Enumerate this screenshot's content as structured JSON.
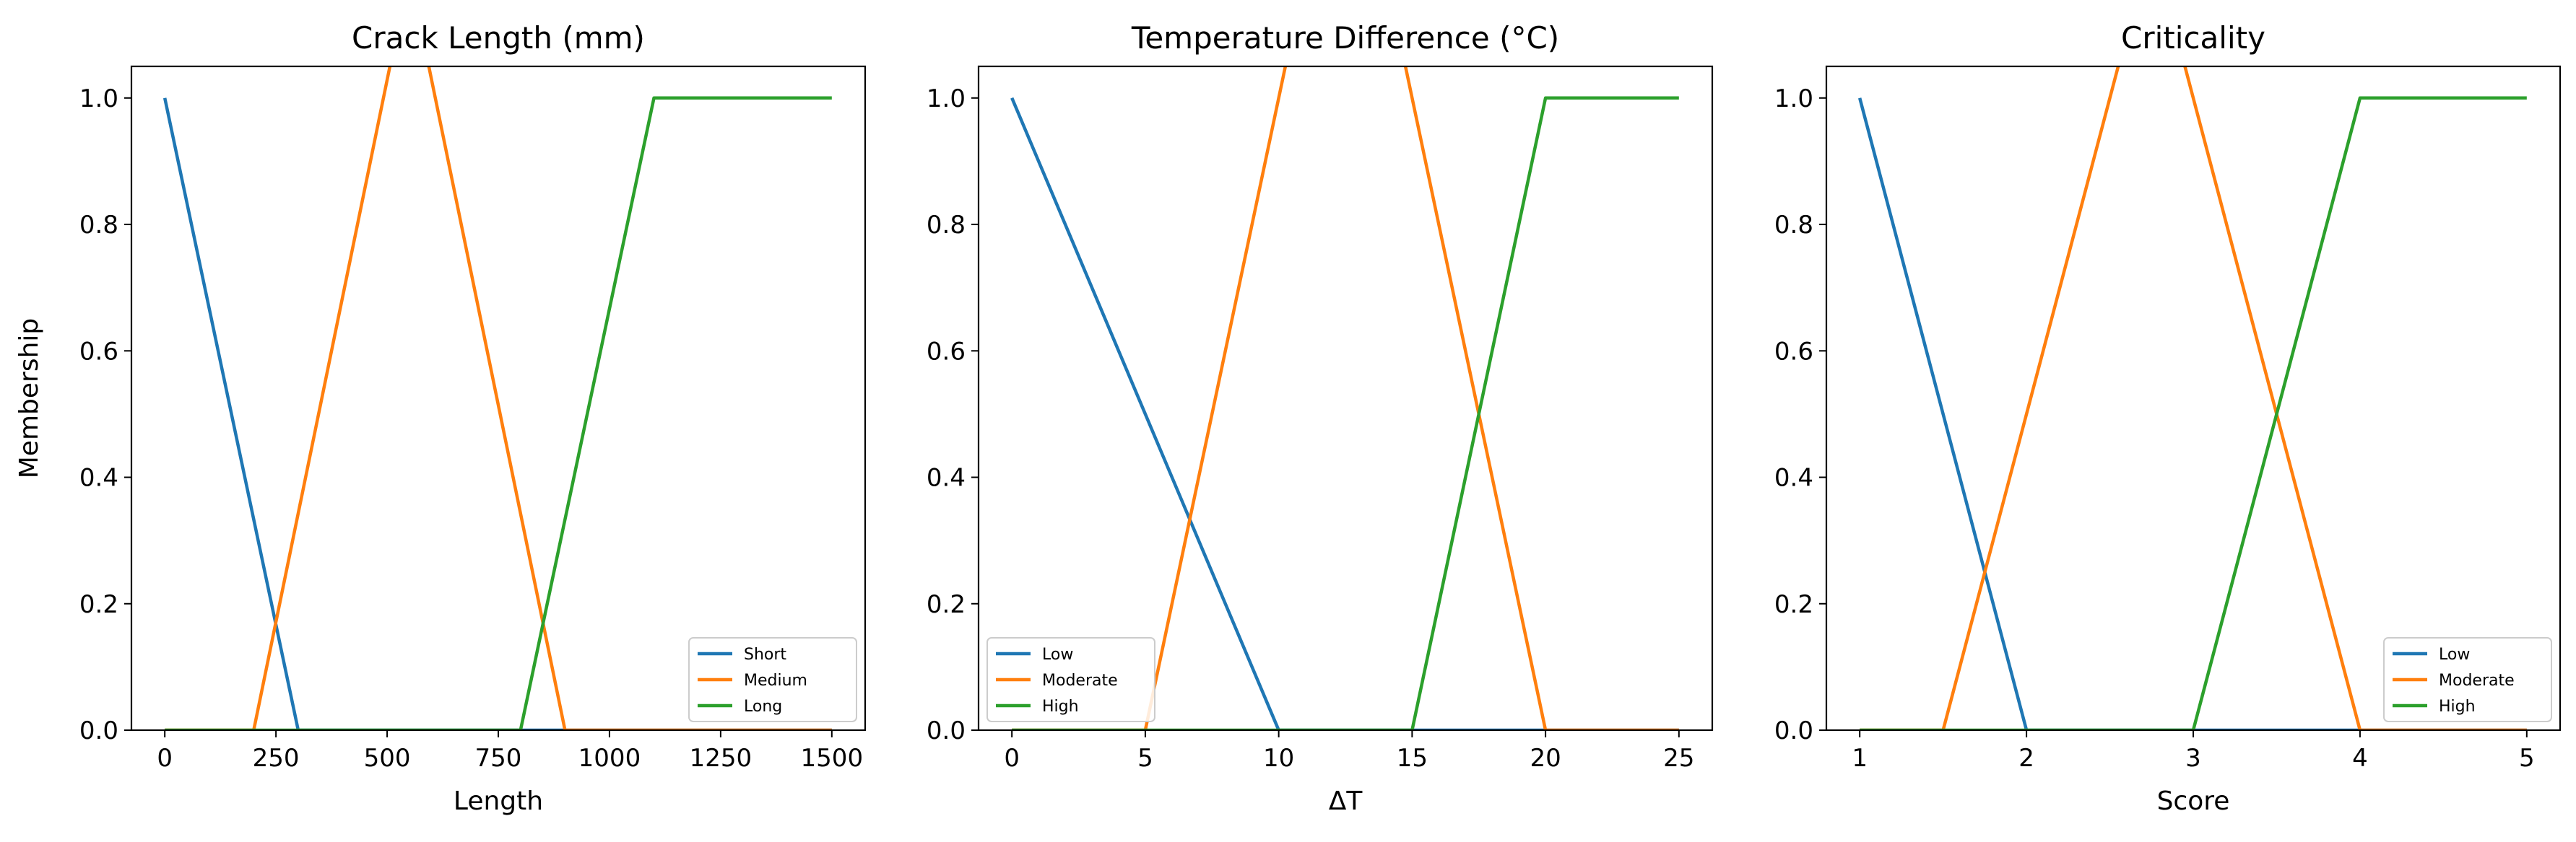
{
  "chart_data": [
    {
      "type": "line",
      "title": "Crack Length (mm)",
      "xlabel": "Length",
      "ylabel": "Membership",
      "xlim": [
        -75,
        1575
      ],
      "ylim": [
        0,
        1.05
      ],
      "xticks": [
        0,
        250,
        500,
        750,
        1000,
        1250,
        1500
      ],
      "xtick_labels": [
        "0",
        "250",
        "500",
        "750",
        "1000",
        "1250",
        "1500"
      ],
      "yticks": [
        0,
        0.2,
        0.4,
        0.6,
        0.8,
        1.0
      ],
      "ytick_labels": [
        "0.0",
        "0.2",
        "0.4",
        "0.6",
        "0.8",
        "1.0"
      ],
      "legend_position": "lower-right",
      "grid": false,
      "series": [
        {
          "name": "Short",
          "color": "#1f77b4",
          "x": [
            0,
            300,
            1500
          ],
          "y": [
            1,
            0,
            0
          ]
        },
        {
          "name": "Medium",
          "color": "#ff7f0e",
          "x": [
            0,
            200,
            550,
            900,
            1500
          ],
          "y": [
            0,
            0,
            1.2,
            0,
            0
          ]
        },
        {
          "name": "Long",
          "color": "#2ca02c",
          "x": [
            0,
            800,
            1100,
            1500
          ],
          "y": [
            0,
            0,
            1,
            1
          ]
        }
      ]
    },
    {
      "type": "line",
      "title": "Temperature Difference (°C)",
      "xlabel": "ΔT",
      "ylabel": "",
      "xlim": [
        -1.25,
        26.25
      ],
      "ylim": [
        0,
        1.05
      ],
      "xticks": [
        0,
        5,
        10,
        15,
        20,
        25
      ],
      "xtick_labels": [
        "0",
        "5",
        "10",
        "15",
        "20",
        "25"
      ],
      "yticks": [
        0,
        0.2,
        0.4,
        0.6,
        0.8,
        1.0
      ],
      "ytick_labels": [
        "0.0",
        "0.2",
        "0.4",
        "0.6",
        "0.8",
        "1.0"
      ],
      "legend_position": "lower-left",
      "grid": false,
      "series": [
        {
          "name": "Low",
          "color": "#1f77b4",
          "x": [
            0,
            10,
            25
          ],
          "y": [
            1,
            0,
            0
          ]
        },
        {
          "name": "Moderate",
          "color": "#ff7f0e",
          "x": [
            0,
            5,
            12.5,
            20,
            25
          ],
          "y": [
            0,
            0,
            1.5,
            0,
            0
          ]
        },
        {
          "name": "High",
          "color": "#2ca02c",
          "x": [
            0,
            15,
            20,
            25
          ],
          "y": [
            0,
            0,
            1,
            1
          ]
        }
      ]
    },
    {
      "type": "line",
      "title": "Criticality",
      "xlabel": "Score",
      "ylabel": "",
      "xlim": [
        0.8,
        5.2
      ],
      "ylim": [
        0,
        1.05
      ],
      "xticks": [
        1,
        2,
        3,
        4,
        5
      ],
      "xtick_labels": [
        "1",
        "2",
        "3",
        "4",
        "5"
      ],
      "yticks": [
        0,
        0.2,
        0.4,
        0.6,
        0.8,
        1.0
      ],
      "ytick_labels": [
        "0.0",
        "0.2",
        "0.4",
        "0.6",
        "0.8",
        "1.0"
      ],
      "legend_position": "lower-right",
      "grid": false,
      "series": [
        {
          "name": "Low",
          "color": "#1f77b4",
          "x": [
            1,
            2,
            5
          ],
          "y": [
            1,
            0,
            0
          ]
        },
        {
          "name": "Moderate",
          "color": "#ff7f0e",
          "x": [
            1,
            1.5,
            2.75,
            4,
            5
          ],
          "y": [
            0,
            0,
            1.25,
            0,
            0
          ]
        },
        {
          "name": "High",
          "color": "#2ca02c",
          "x": [
            1,
            3,
            4,
            5
          ],
          "y": [
            0,
            0,
            1,
            1
          ]
        }
      ]
    }
  ]
}
